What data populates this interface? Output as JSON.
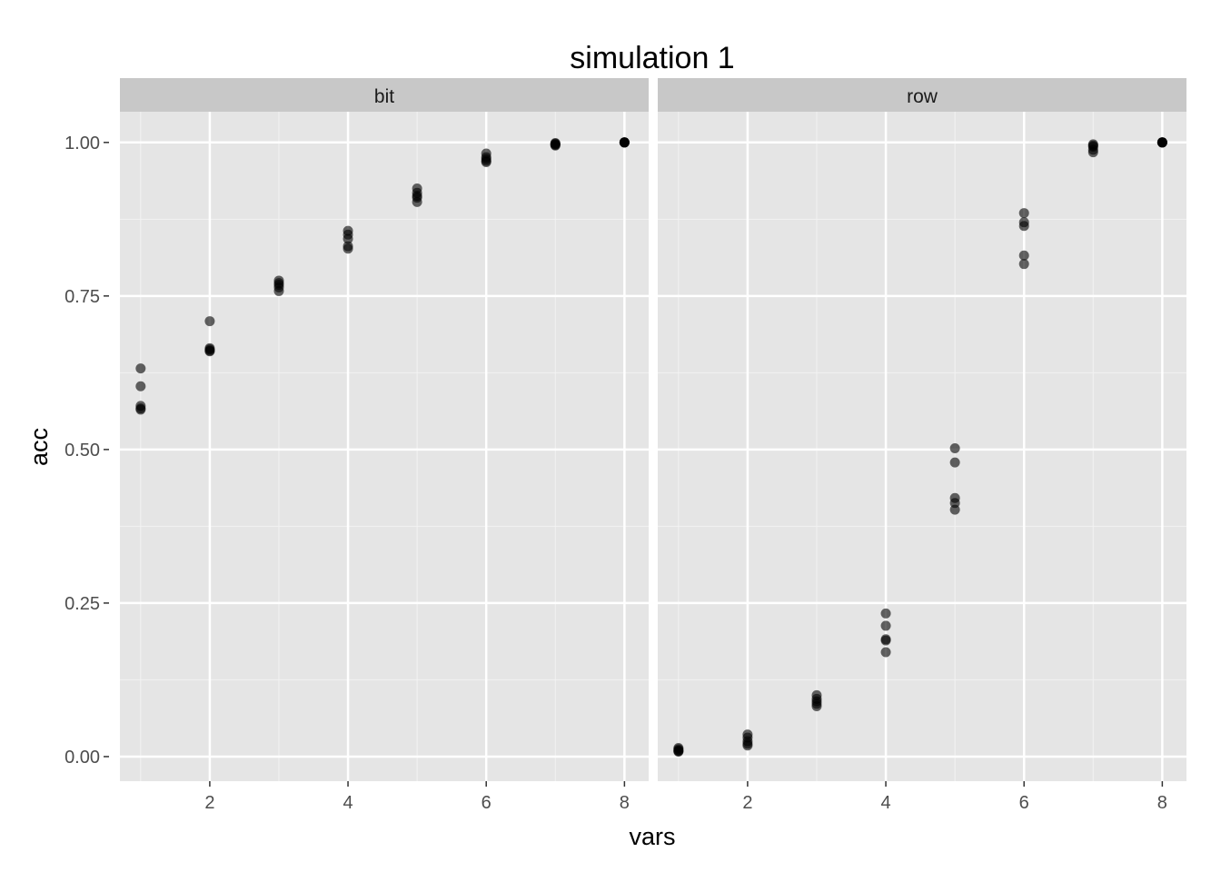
{
  "chart_data": {
    "type": "scatter",
    "title": "simulation 1",
    "xlabel": "vars",
    "ylabel": "acc",
    "xlim": [
      0.7,
      8.35
    ],
    "ylim": [
      -0.04,
      1.05
    ],
    "x_ticks": [
      2,
      4,
      6,
      8
    ],
    "y_ticks": [
      0.0,
      0.25,
      0.5,
      0.75,
      1.0
    ],
    "y_tick_labels": [
      "0.00",
      "0.25",
      "0.50",
      "0.75",
      "1.00"
    ],
    "grid": true,
    "point_color": "#000000",
    "point_alpha": 0.6,
    "panel_background": "#e5e5e5",
    "strip_background": "#c8c8c8",
    "panels": [
      {
        "label": "bit",
        "points": [
          [
            1,
            0.632
          ],
          [
            1,
            0.603
          ],
          [
            1,
            0.571
          ],
          [
            1,
            0.567
          ],
          [
            1,
            0.565
          ],
          [
            2,
            0.709
          ],
          [
            2,
            0.665
          ],
          [
            2,
            0.663
          ],
          [
            2,
            0.661
          ],
          [
            2,
            0.66
          ],
          [
            3,
            0.775
          ],
          [
            3,
            0.771
          ],
          [
            3,
            0.768
          ],
          [
            3,
            0.764
          ],
          [
            3,
            0.758
          ],
          [
            4,
            0.856
          ],
          [
            4,
            0.85
          ],
          [
            4,
            0.843
          ],
          [
            4,
            0.831
          ],
          [
            4,
            0.827
          ],
          [
            5,
            0.925
          ],
          [
            5,
            0.918
          ],
          [
            5,
            0.913
          ],
          [
            5,
            0.91
          ],
          [
            5,
            0.903
          ],
          [
            6,
            0.982
          ],
          [
            6,
            0.976
          ],
          [
            6,
            0.973
          ],
          [
            6,
            0.97
          ],
          [
            6,
            0.968
          ],
          [
            7,
            0.999
          ],
          [
            7,
            0.998
          ],
          [
            7,
            0.997
          ],
          [
            7,
            0.996
          ],
          [
            7,
            0.995
          ],
          [
            8,
            1.0
          ],
          [
            8,
            1.0
          ],
          [
            8,
            1.0
          ],
          [
            8,
            1.0
          ],
          [
            8,
            1.0
          ]
        ]
      },
      {
        "label": "row",
        "points": [
          [
            1,
            0.014
          ],
          [
            1,
            0.012
          ],
          [
            1,
            0.01
          ],
          [
            1,
            0.009
          ],
          [
            1,
            0.008
          ],
          [
            2,
            0.036
          ],
          [
            2,
            0.031
          ],
          [
            2,
            0.025
          ],
          [
            2,
            0.021
          ],
          [
            2,
            0.018
          ],
          [
            3,
            0.1
          ],
          [
            3,
            0.094
          ],
          [
            3,
            0.09
          ],
          [
            3,
            0.086
          ],
          [
            3,
            0.082
          ],
          [
            4,
            0.233
          ],
          [
            4,
            0.213
          ],
          [
            4,
            0.191
          ],
          [
            4,
            0.189
          ],
          [
            4,
            0.17
          ],
          [
            5,
            0.502
          ],
          [
            5,
            0.479
          ],
          [
            5,
            0.421
          ],
          [
            5,
            0.413
          ],
          [
            5,
            0.402
          ],
          [
            6,
            0.885
          ],
          [
            6,
            0.87
          ],
          [
            6,
            0.864
          ],
          [
            6,
            0.816
          ],
          [
            6,
            0.802
          ],
          [
            7,
            0.997
          ],
          [
            7,
            0.995
          ],
          [
            7,
            0.993
          ],
          [
            7,
            0.988
          ],
          [
            7,
            0.984
          ],
          [
            8,
            1.0
          ],
          [
            8,
            1.0
          ],
          [
            8,
            1.0
          ],
          [
            8,
            1.0
          ],
          [
            8,
            1.0
          ]
        ]
      }
    ]
  }
}
